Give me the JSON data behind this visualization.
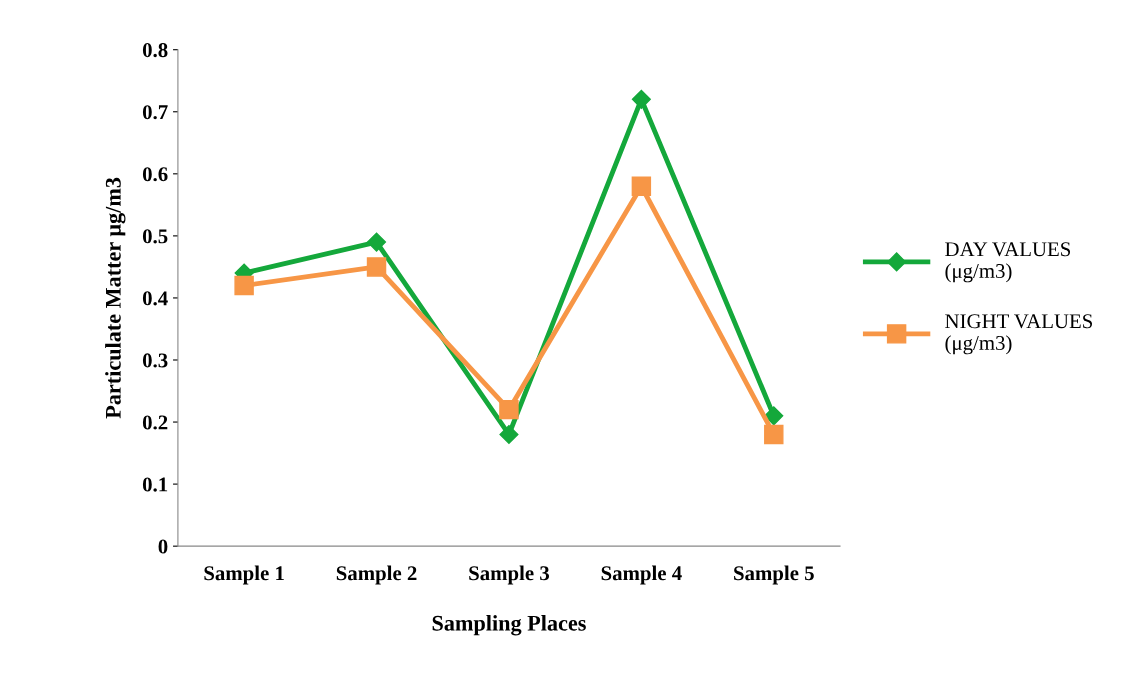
{
  "chart_data": {
    "type": "line",
    "xlabel": "Sampling Places",
    "ylabel": "Particulate Matter μg/m3",
    "categories": [
      "Sample 1",
      "Sample 2",
      "Sample 3",
      "Sample 4",
      "Sample 5"
    ],
    "series": [
      {
        "name": "DAY VALUES\n(μg/m3)",
        "color": "#14a83b",
        "marker": "diamond",
        "values": [
          0.44,
          0.49,
          0.18,
          0.72,
          0.21
        ]
      },
      {
        "name": "NIGHT VALUES\n(μg/m3)",
        "color": "#f79646",
        "marker": "square",
        "values": [
          0.42,
          0.45,
          0.22,
          0.58,
          0.18
        ]
      }
    ],
    "ylim": [
      0,
      0.8
    ],
    "yticks": [
      {
        "value": 0,
        "label": "0"
      },
      0.1,
      0.2,
      0.3,
      0.4,
      0.5,
      0.6,
      0.7,
      0.8
    ],
    "grid": false,
    "legend": "right",
    "line_style": "solid"
  }
}
